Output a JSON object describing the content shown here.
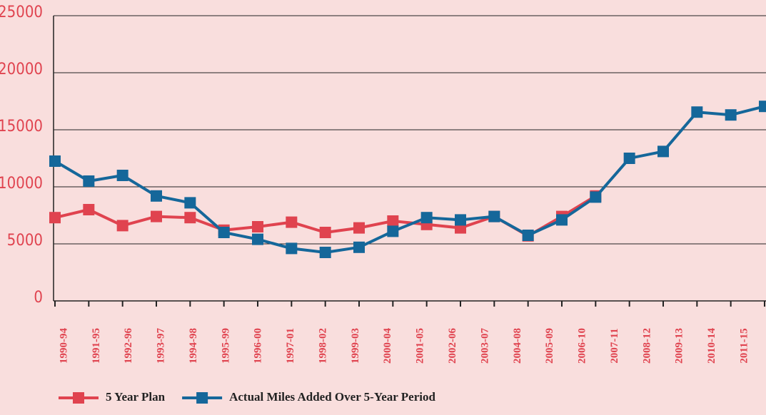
{
  "chart_data": {
    "type": "line",
    "categories": [
      "1990-94",
      "1991-95",
      "1992-96",
      "1993-97",
      "1994-98",
      "1995-99",
      "1996-00",
      "1997-01",
      "1998-02",
      "1999-03",
      "2000-04",
      "2001-05",
      "2002-06",
      "2003-07",
      "2004-08",
      "2005-09",
      "2006-10",
      "2007-11",
      "2008-12",
      "2009-13",
      "2010-14",
      "2011-15"
    ],
    "series": [
      {
        "name": "5 Year Plan",
        "color": "#e0434f",
        "values": [
          7300,
          8000,
          6600,
          7400,
          7300,
          6200,
          6500,
          6900,
          6000,
          6400,
          7000,
          6700,
          6400,
          7400,
          5700,
          7400,
          9200,
          null,
          null,
          null,
          null,
          null
        ]
      },
      {
        "name": "Actual Miles Added Over 5-Year Period",
        "color": "#15679a",
        "values": [
          12250,
          10500,
          11000,
          9200,
          8600,
          6000,
          5400,
          4600,
          4250,
          4700,
          6100,
          7300,
          7100,
          7400,
          5750,
          7100,
          9100,
          12500,
          13100,
          16550,
          16300,
          17050
        ]
      }
    ],
    "ylim": [
      0,
      25000
    ],
    "yticks": [
      0,
      5000,
      10000,
      15000,
      20000,
      25000
    ],
    "grid": true,
    "legend": "bottom"
  }
}
